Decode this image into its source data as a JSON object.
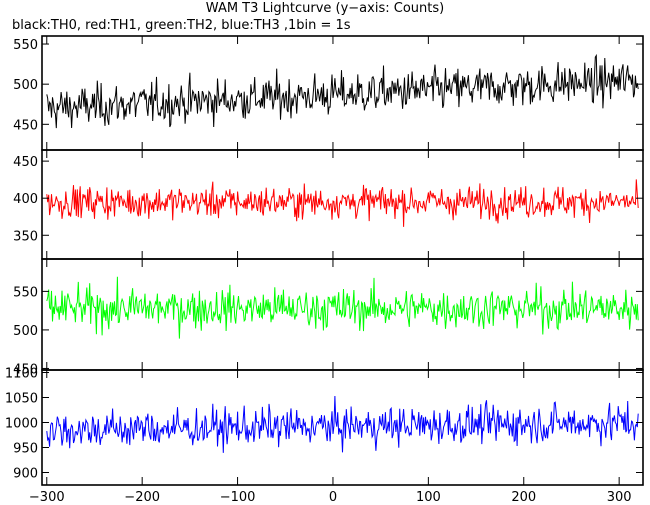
{
  "chart_data": [
    {
      "type": "line",
      "series": [
        {
          "name": "TH0",
          "color": "#000000",
          "level_start": 470,
          "level_end": 505,
          "noise": 22
        }
      ],
      "xlim": [
        -305,
        325
      ],
      "ylim": [
        418,
        560
      ],
      "yticks": [
        450,
        500,
        550
      ]
    },
    {
      "type": "line",
      "series": [
        {
          "name": "TH1",
          "color": "#ff0000",
          "level_start": 395,
          "level_end": 395,
          "noise": 18
        }
      ],
      "xlim": [
        -305,
        325
      ],
      "ylim": [
        318,
        465
      ],
      "yticks": [
        350,
        400,
        450
      ]
    },
    {
      "type": "line",
      "series": [
        {
          "name": "TH2",
          "color": "#00ff00",
          "level_start": 528,
          "level_end": 528,
          "noise": 22
        }
      ],
      "xlim": [
        -305,
        325
      ],
      "ylim": [
        448,
        592
      ],
      "yticks": [
        450,
        500,
        550
      ]
    },
    {
      "type": "line",
      "series": [
        {
          "name": "TH3",
          "color": "#0000ff",
          "level_start": 985,
          "level_end": 1000,
          "noise": 32
        }
      ],
      "xlim": [
        -305,
        325
      ],
      "ylim": [
        875,
        1105
      ],
      "yticks": [
        900,
        950,
        1000,
        1050,
        1100
      ],
      "xticks": [
        -300,
        -200,
        -100,
        0,
        100,
        200,
        300
      ]
    }
  ],
  "title": "WAM T3 Lightcurve (y−axis: Counts)",
  "subtitle": "black:TH0, red:TH1, green:TH2, blue:TH3 ,1bin = 1s"
}
